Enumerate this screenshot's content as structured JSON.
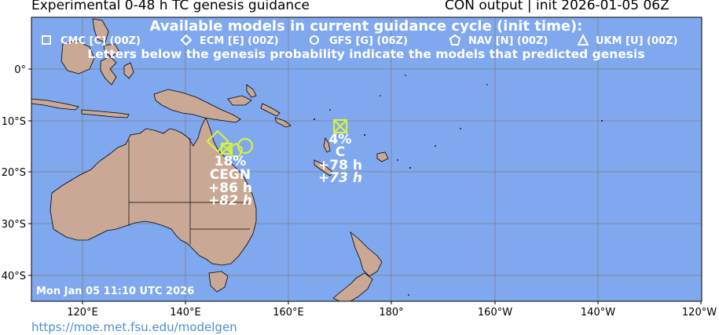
{
  "header": {
    "title_left": "Experimental 0-48 h TC genesis guidance",
    "title_right": "CON output | init 2026-01-05 06Z"
  },
  "map": {
    "heading": "Available models in current guidance cycle (init time):",
    "legend": [
      {
        "marker": "square",
        "label": "CMC [C] (00Z)"
      },
      {
        "marker": "diamond",
        "label": "ECM [E] (00Z)"
      },
      {
        "marker": "circle",
        "label": "GFS [G] (06Z)"
      },
      {
        "marker": "pentagon",
        "label": "NAV [N] (00Z)"
      },
      {
        "marker": "triangle",
        "label": "UKM [U] (00Z)"
      }
    ],
    "note": "Letters below the genesis probability indicate the models that predicted genesis",
    "timestamp": "Mon Jan 05 11:10 UTC 2026",
    "lat_labels": [
      "0°",
      "10°S",
      "20°S",
      "30°S",
      "40°S"
    ],
    "lon_labels": [
      "120°E",
      "140°E",
      "160°E",
      "180°",
      "160°W",
      "140°W",
      "120°W"
    ],
    "colors": {
      "ocean": "#7fa8ef",
      "land": "#c9a996",
      "grid": "#808080",
      "text_overlay": "#ffffff",
      "marker": "#d8f040"
    },
    "systems": [
      {
        "name": "coral-sea",
        "probability": "18%",
        "models": "CEGN",
        "lead_1": "+86 h",
        "lead_2": "+82 h",
        "lat": -16,
        "lon": 148
      },
      {
        "name": "vanuatu",
        "probability": "4%",
        "models": "C",
        "lead_1": "+78 h",
        "lead_2": "+73 h",
        "lat": -11.5,
        "lon": 170
      }
    ]
  },
  "footer": {
    "url": "https://moe.met.fsu.edu/modelgen"
  }
}
